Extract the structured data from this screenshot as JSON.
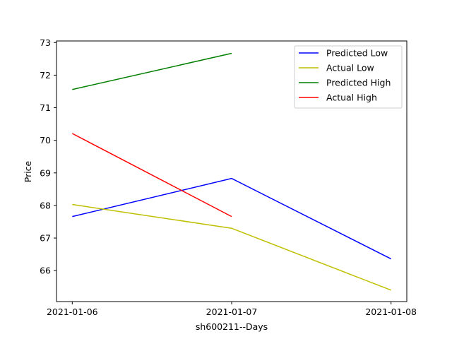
{
  "chart_data": {
    "type": "line",
    "title": "",
    "xlabel": "sh600211--Days",
    "ylabel": "Price",
    "categories": [
      "2021-01-06",
      "2021-01-07",
      "2021-01-08"
    ],
    "ylim": [
      65.05,
      73.05
    ],
    "yticks": [
      66,
      67,
      68,
      69,
      70,
      71,
      72,
      73
    ],
    "grid": false,
    "legend_position": "top-right",
    "series": [
      {
        "name": "Predicted Low",
        "color": "#0000ff",
        "values": [
          67.66,
          68.83,
          66.36
        ]
      },
      {
        "name": "Actual Low",
        "color": "#bfbf00",
        "values": [
          68.03,
          67.3,
          65.4
        ]
      },
      {
        "name": "Predicted High",
        "color": "#008000",
        "values": [
          71.56,
          72.67,
          null
        ]
      },
      {
        "name": "Actual High",
        "color": "#ff0000",
        "values": [
          70.21,
          67.66,
          null
        ]
      }
    ]
  }
}
